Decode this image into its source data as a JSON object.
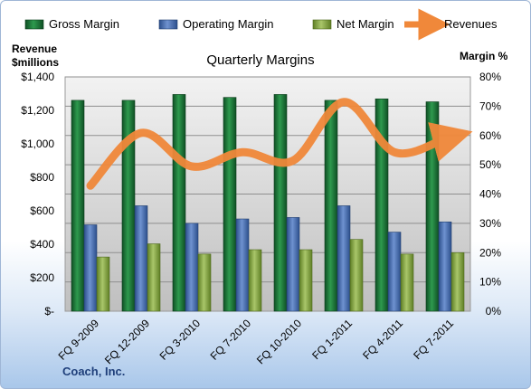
{
  "chart_data": {
    "type": "bar",
    "title": "Quarterly Margins",
    "company": "Coach, Inc.",
    "categories": [
      "FQ 9-2009",
      "FQ 12-2009",
      "FQ 3-2010",
      "FQ 7-2010",
      "FQ 10-2010",
      "FQ 1-2011",
      "FQ 4-2011",
      "FQ 7-2011"
    ],
    "series": [
      {
        "name": "Gross Margin",
        "axis": "right",
        "values": [
          72,
          72,
          74,
          73,
          74,
          72,
          72.5,
          71.5
        ],
        "color": "#1f7a3a"
      },
      {
        "name": "Operating Margin",
        "axis": "right",
        "values": [
          29.5,
          36,
          30,
          31.5,
          32,
          36,
          27,
          30.5
        ],
        "color": "#4a6fb5"
      },
      {
        "name": "Net Margin",
        "axis": "right",
        "values": [
          18.5,
          23,
          19.5,
          21,
          21,
          24.5,
          19.5,
          20
        ],
        "color": "#8db04a"
      },
      {
        "name": "Revenues",
        "type": "line",
        "axis": "left",
        "values": [
          750,
          1065,
          865,
          950,
          900,
          1250,
          950,
          1030
        ],
        "color": "#f0883a"
      }
    ],
    "left_axis": {
      "title": "Revenue\n$millions",
      "min": 0,
      "max": 1400,
      "ticks": [
        "$-",
        "$200",
        "$400",
        "$600",
        "$800",
        "$1,000",
        "$1,200",
        "$1,400"
      ]
    },
    "right_axis": {
      "title": "Margin %",
      "min": 0,
      "max": 80,
      "ticks": [
        "0%",
        "10%",
        "20%",
        "30%",
        "40%",
        "50%",
        "60%",
        "70%",
        "80%"
      ]
    },
    "legend_position": "top",
    "grid": true
  }
}
